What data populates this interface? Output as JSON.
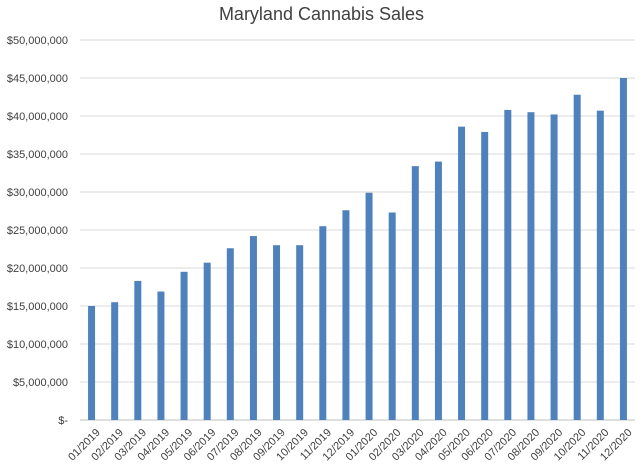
{
  "chart_data": {
    "type": "bar",
    "title": "Maryland Cannabis Sales",
    "xlabel": "",
    "ylabel": "",
    "ylim": [
      0,
      50000000
    ],
    "yticks": [
      0,
      5000000,
      10000000,
      15000000,
      20000000,
      25000000,
      30000000,
      35000000,
      40000000,
      45000000,
      50000000
    ],
    "ytick_labels": [
      "$-",
      "$5,000,000",
      "$10,000,000",
      "$15,000,000",
      "$20,000,000",
      "$25,000,000",
      "$30,000,000",
      "$35,000,000",
      "$40,000,000",
      "$45,000,000",
      "$50,000,000"
    ],
    "grid": true,
    "legend": "none",
    "bar_color": "#4f81bd",
    "categories": [
      "01/2019",
      "02/2019",
      "03/2019",
      "04/2019",
      "05/2019",
      "06/2019",
      "07/2019",
      "08/2019",
      "09/2019",
      "10/2019",
      "11/2019",
      "12/2019",
      "01/2020",
      "02/2020",
      "03/2020",
      "04/2020",
      "05/2020",
      "06/2020",
      "07/2020",
      "08/2020",
      "09/2020",
      "10/2020",
      "11/2020",
      "12/2020"
    ],
    "values": [
      15000000,
      15500000,
      18300000,
      16900000,
      19500000,
      20700000,
      22600000,
      24200000,
      23000000,
      23000000,
      25500000,
      27600000,
      29900000,
      27300000,
      33400000,
      34000000,
      38600000,
      37900000,
      40800000,
      40500000,
      40200000,
      42800000,
      40700000,
      45000000
    ]
  }
}
